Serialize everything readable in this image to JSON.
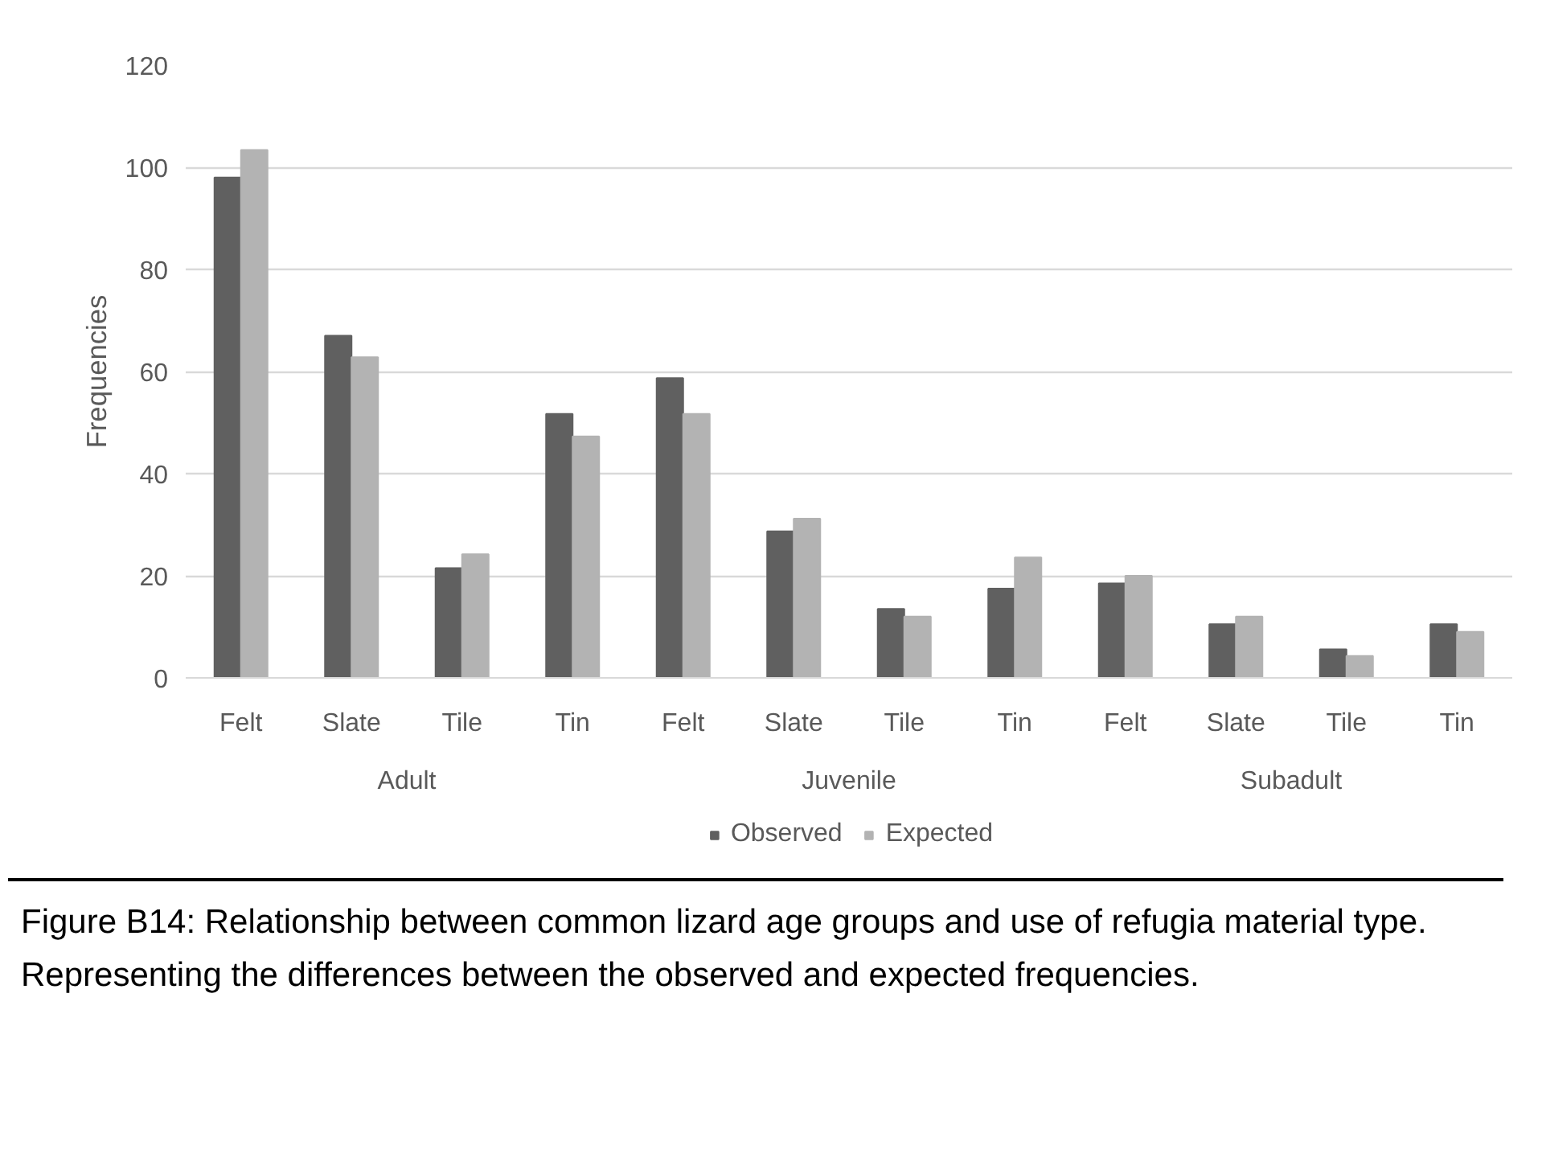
{
  "chart_data": {
    "type": "bar",
    "ylabel": "Frequencies",
    "categories": [
      "Felt",
      "Slate",
      "Tile",
      "Tin",
      "Felt",
      "Slate",
      "Tile",
      "Tin",
      "Felt",
      "Slate",
      "Tile",
      "Tin"
    ],
    "series": [
      {
        "name": "Observed",
        "color": "#606060",
        "values": [
          98,
          67,
          21.5,
          51.7,
          58.7,
          28.7,
          13.5,
          17.5,
          18.5,
          10.5,
          5.6,
          10.5
        ]
      },
      {
        "name": "Expected",
        "color": "#b3b3b3",
        "values": [
          103.4,
          62.8,
          24.2,
          47.3,
          51.7,
          31.2,
          12,
          23.6,
          20,
          12,
          4.3,
          9
        ]
      }
    ],
    "ylim": [
      0,
      120
    ],
    "yticks": [
      0,
      20,
      40,
      60,
      80,
      100,
      120
    ],
    "grid": "y",
    "legend": "bottom",
    "annotations": [
      "Adult",
      "Juvenile",
      "Subadult",
      "Figure B14: Relationship between common lizard age groups and use of refugia material type. Representing the differences between the observed and expected frequencies."
    ]
  }
}
